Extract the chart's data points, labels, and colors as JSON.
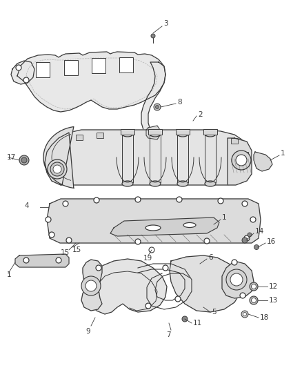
{
  "bg_color": "#ffffff",
  "line_color": "#3a3a3a",
  "label_color": "#3a3a3a",
  "label_fontsize": 7.5,
  "lw_main": 0.9,
  "lw_thin": 0.6
}
